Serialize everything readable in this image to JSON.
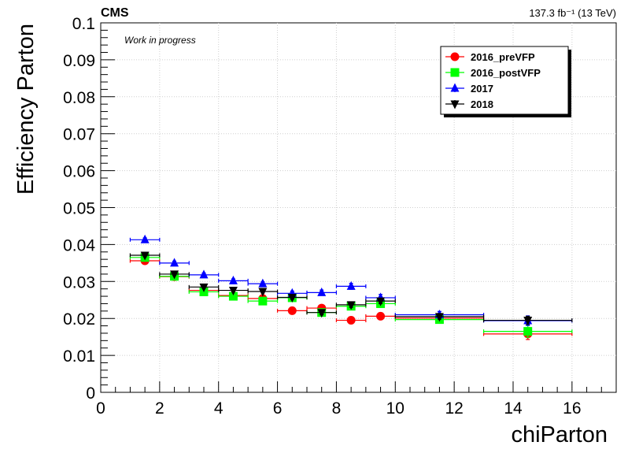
{
  "chart_data": {
    "type": "scatter",
    "header_left": "CMS",
    "header_right": "137.3 fb⁻¹ (13 TeV)",
    "annotation": "Work in progress",
    "xlabel": "chiParton",
    "ylabel": "Efficiency Parton",
    "xlim": [
      0,
      17.5
    ],
    "ylim": [
      0,
      0.1
    ],
    "x_ticks": [
      "0",
      "2",
      "4",
      "6",
      "8",
      "10",
      "12",
      "14",
      "16"
    ],
    "y_ticks": [
      "0",
      "0.01",
      "0.02",
      "0.03",
      "0.04",
      "0.05",
      "0.06",
      "0.07",
      "0.08",
      "0.09",
      "0.1"
    ],
    "legend_position": "top-right",
    "series": [
      {
        "name": "2016_preVFP",
        "color": "#ff0000",
        "marker": "circle",
        "points": [
          {
            "x": 1.5,
            "xerr": 0.5,
            "y": 0.0356,
            "yerr": 0.0006
          },
          {
            "x": 2.5,
            "xerr": 0.5,
            "y": 0.0313,
            "yerr": 0.0006
          },
          {
            "x": 3.5,
            "xerr": 0.5,
            "y": 0.0276,
            "yerr": 0.0006
          },
          {
            "x": 4.5,
            "xerr": 0.5,
            "y": 0.0262,
            "yerr": 0.0006
          },
          {
            "x": 5.5,
            "xerr": 0.5,
            "y": 0.0254,
            "yerr": 0.0006
          },
          {
            "x": 6.5,
            "xerr": 0.5,
            "y": 0.0221,
            "yerr": 0.0006
          },
          {
            "x": 7.5,
            "xerr": 0.5,
            "y": 0.0228,
            "yerr": 0.0008
          },
          {
            "x": 8.5,
            "xerr": 0.5,
            "y": 0.0195,
            "yerr": 0.0009
          },
          {
            "x": 9.5,
            "xerr": 0.5,
            "y": 0.0206,
            "yerr": 0.0009
          },
          {
            "x": 11.5,
            "xerr": 1.5,
            "y": 0.0201,
            "yerr": 0.0009
          },
          {
            "x": 14.5,
            "xerr": 1.5,
            "y": 0.0158,
            "yerr": 0.0015
          }
        ]
      },
      {
        "name": "2016_postVFP",
        "color": "#00ff00",
        "marker": "square",
        "points": [
          {
            "x": 1.5,
            "xerr": 0.5,
            "y": 0.0365,
            "yerr": 0.0006
          },
          {
            "x": 2.5,
            "xerr": 0.5,
            "y": 0.0314,
            "yerr": 0.0006
          },
          {
            "x": 3.5,
            "xerr": 0.5,
            "y": 0.0272,
            "yerr": 0.0006
          },
          {
            "x": 4.5,
            "xerr": 0.5,
            "y": 0.026,
            "yerr": 0.0006
          },
          {
            "x": 5.5,
            "xerr": 0.5,
            "y": 0.0247,
            "yerr": 0.0006
          },
          {
            "x": 6.5,
            "xerr": 0.5,
            "y": 0.0256,
            "yerr": 0.0007
          },
          {
            "x": 7.5,
            "xerr": 0.5,
            "y": 0.0216,
            "yerr": 0.0009
          },
          {
            "x": 8.5,
            "xerr": 0.5,
            "y": 0.0233,
            "yerr": 0.0009
          },
          {
            "x": 9.5,
            "xerr": 0.5,
            "y": 0.024,
            "yerr": 0.001
          },
          {
            "x": 11.5,
            "xerr": 1.5,
            "y": 0.0197,
            "yerr": 0.001
          },
          {
            "x": 14.5,
            "xerr": 1.5,
            "y": 0.0165,
            "yerr": 0.0016
          }
        ]
      },
      {
        "name": "2017",
        "color": "#0000ff",
        "marker": "triangle-up",
        "points": [
          {
            "x": 1.5,
            "xerr": 0.5,
            "y": 0.0413,
            "yerr": 0.0005
          },
          {
            "x": 2.5,
            "xerr": 0.5,
            "y": 0.035,
            "yerr": 0.0005
          },
          {
            "x": 3.5,
            "xerr": 0.5,
            "y": 0.0318,
            "yerr": 0.0005
          },
          {
            "x": 4.5,
            "xerr": 0.5,
            "y": 0.0302,
            "yerr": 0.0005
          },
          {
            "x": 5.5,
            "xerr": 0.5,
            "y": 0.0294,
            "yerr": 0.0005
          },
          {
            "x": 6.5,
            "xerr": 0.5,
            "y": 0.0268,
            "yerr": 0.0006
          },
          {
            "x": 7.5,
            "xerr": 0.5,
            "y": 0.027,
            "yerr": 0.0007
          },
          {
            "x": 8.5,
            "xerr": 0.5,
            "y": 0.0287,
            "yerr": 0.0008
          },
          {
            "x": 9.5,
            "xerr": 0.5,
            "y": 0.0256,
            "yerr": 0.0009
          },
          {
            "x": 11.5,
            "xerr": 1.5,
            "y": 0.021,
            "yerr": 0.0009
          },
          {
            "x": 14.5,
            "xerr": 1.5,
            "y": 0.0194,
            "yerr": 0.0013
          }
        ]
      },
      {
        "name": "2018",
        "color": "#000000",
        "marker": "triangle-down",
        "points": [
          {
            "x": 1.5,
            "xerr": 0.5,
            "y": 0.0371,
            "yerr": 0.0004
          },
          {
            "x": 2.5,
            "xerr": 0.5,
            "y": 0.032,
            "yerr": 0.0004
          },
          {
            "x": 3.5,
            "xerr": 0.5,
            "y": 0.0285,
            "yerr": 0.0004
          },
          {
            "x": 4.5,
            "xerr": 0.5,
            "y": 0.0276,
            "yerr": 0.0004
          },
          {
            "x": 5.5,
            "xerr": 0.5,
            "y": 0.0273,
            "yerr": 0.0004
          },
          {
            "x": 6.5,
            "xerr": 0.5,
            "y": 0.0257,
            "yerr": 0.0005
          },
          {
            "x": 7.5,
            "xerr": 0.5,
            "y": 0.0216,
            "yerr": 0.0006
          },
          {
            "x": 8.5,
            "xerr": 0.5,
            "y": 0.0237,
            "yerr": 0.0007
          },
          {
            "x": 9.5,
            "xerr": 0.5,
            "y": 0.0247,
            "yerr": 0.0007
          },
          {
            "x": 11.5,
            "xerr": 1.5,
            "y": 0.0205,
            "yerr": 0.0007
          },
          {
            "x": 14.5,
            "xerr": 1.5,
            "y": 0.0195,
            "yerr": 0.0011
          }
        ]
      }
    ]
  }
}
